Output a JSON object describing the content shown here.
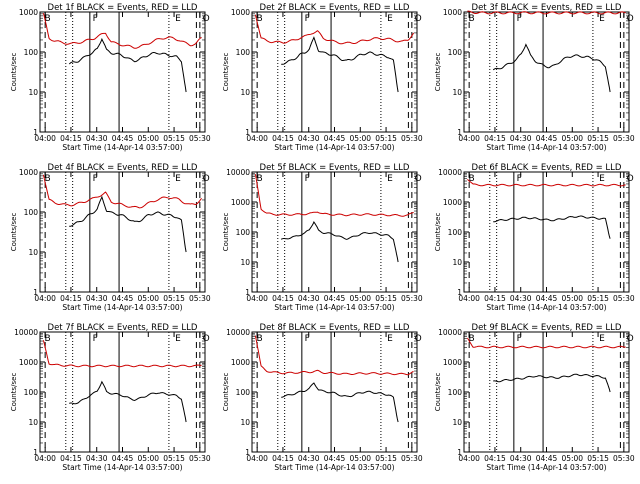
{
  "chart_data": [
    {
      "type": "line",
      "title": "Det 1f BLACK = Events, RED = LLD",
      "xlabel": "Start Time (14-Apr-14 03:57:00)",
      "ylabel": "Counts/sec",
      "ylim": [
        1,
        1000
      ],
      "y_scale": "log",
      "x_ticks": [
        "04:00",
        "04:15",
        "04:30",
        "04:45",
        "05:00",
        "05:15",
        "05:30"
      ],
      "y_ticks": [
        "1",
        "10",
        "100",
        "1000"
      ],
      "markers": [
        "B",
        "F",
        "E",
        "O"
      ],
      "series": [
        {
          "name": "Events",
          "color": "#000000",
          "start": "04:14",
          "end": "05:22",
          "values": [
            50,
            55,
            60,
            70,
            85,
            95,
            120,
            220,
            110,
            95,
            90,
            85,
            75,
            65,
            60,
            65,
            75,
            85,
            92,
            95,
            90,
            85,
            80,
            75,
            60,
            10
          ]
        },
        {
          "name": "LLD",
          "color": "#cc0000",
          "start": "03:59",
          "end": "05:31",
          "values": [
            900,
            220,
            190,
            175,
            165,
            160,
            170,
            180,
            200,
            220,
            260,
            300,
            180,
            160,
            150,
            140,
            130,
            135,
            150,
            175,
            200,
            220,
            230,
            220,
            200,
            170,
            150,
            160,
            230
          ]
        }
      ]
    },
    {
      "type": "line",
      "title": "Det 2f BLACK = Events, RED = LLD",
      "xlabel": "Start Time (14-Apr-14 03:57:00)",
      "ylabel": "Counts/sec",
      "ylim": [
        1,
        1000
      ],
      "y_scale": "log",
      "x_ticks": [
        "04:00",
        "04:15",
        "04:30",
        "04:45",
        "05:00",
        "05:15",
        "05:30"
      ],
      "y_ticks": [
        "1",
        "10",
        "100",
        "1000"
      ],
      "markers": [
        "B",
        "F",
        "E",
        "O"
      ],
      "series": [
        {
          "name": "Events",
          "color": "#000000",
          "start": "04:14",
          "end": "05:22",
          "values": [
            50,
            55,
            60,
            70,
            85,
            95,
            120,
            220,
            110,
            95,
            90,
            85,
            75,
            65,
            60,
            65,
            75,
            85,
            92,
            95,
            90,
            85,
            80,
            75,
            60,
            10
          ]
        },
        {
          "name": "LLD",
          "color": "#cc0000",
          "start": "03:59",
          "end": "05:31",
          "values": [
            900,
            220,
            190,
            180,
            175,
            175,
            185,
            200,
            230,
            250,
            300,
            330,
            220,
            200,
            180,
            170,
            165,
            170,
            175,
            190,
            205,
            215,
            220,
            215,
            205,
            190,
            180,
            200,
            300
          ]
        }
      ]
    },
    {
      "type": "line",
      "title": "Det 3f BLACK = Events, RED = LLD",
      "xlabel": "Start Time (14-Apr-14 03:57:00)",
      "ylabel": "Counts/sec",
      "ylim": [
        1,
        1000
      ],
      "y_scale": "log",
      "x_ticks": [
        "04:00",
        "04:15",
        "04:30",
        "04:45",
        "05:00",
        "05:15",
        "05:30"
      ],
      "y_ticks": [
        "1",
        "10",
        "100",
        "1000"
      ],
      "markers": [
        "B",
        "F",
        "E",
        "O"
      ],
      "series": [
        {
          "name": "Events",
          "color": "#000000",
          "start": "04:14",
          "end": "05:22",
          "values": [
            35,
            38,
            42,
            48,
            55,
            65,
            90,
            160,
            80,
            60,
            50,
            45,
            42,
            45,
            55,
            65,
            75,
            80,
            80,
            78,
            75,
            70,
            65,
            55,
            45,
            10
          ]
        },
        {
          "name": "LLD",
          "color": "#cc0000",
          "start": "03:59",
          "end": "05:31",
          "values": [
            1000,
            980,
            960,
            950,
            950,
            950,
            950,
            950,
            950,
            960,
            960,
            960,
            950,
            950,
            950,
            950,
            950,
            950,
            950,
            950,
            950,
            950,
            950,
            950,
            950,
            950,
            950,
            950,
            950
          ]
        }
      ]
    },
    {
      "type": "line",
      "title": "Det 4f BLACK = Events, RED = LLD",
      "xlabel": "Start Time (14-Apr-14 03:57:00)",
      "ylabel": "Counts/sec",
      "ylim": [
        1,
        1000
      ],
      "y_scale": "log",
      "x_ticks": [
        "04:00",
        "04:15",
        "04:30",
        "04:45",
        "05:00",
        "05:15",
        "05:30"
      ],
      "y_ticks": [
        "1",
        "10",
        "100",
        "1000"
      ],
      "markers": [
        "B",
        "F",
        "E",
        "O"
      ],
      "series": [
        {
          "name": "Events",
          "color": "#000000",
          "start": "04:14",
          "end": "05:22",
          "values": [
            45,
            50,
            55,
            65,
            80,
            95,
            120,
            230,
            110,
            95,
            90,
            85,
            75,
            65,
            55,
            60,
            70,
            85,
            92,
            95,
            90,
            85,
            80,
            75,
            60,
            10
          ]
        },
        {
          "name": "LLD",
          "color": "#cc0000",
          "start": "03:59",
          "end": "05:31",
          "values": [
            900,
            200,
            170,
            160,
            150,
            150,
            160,
            175,
            200,
            220,
            260,
            300,
            180,
            165,
            150,
            140,
            130,
            130,
            150,
            175,
            200,
            220,
            235,
            225,
            205,
            170,
            150,
            160,
            220
          ]
        }
      ]
    },
    {
      "type": "line",
      "title": "Det 5f BLACK = Events, RED = LLD",
      "xlabel": "Start Time (14-Apr-14 03:57:00)",
      "ylabel": "Counts/sec",
      "ylim": [
        1,
        10000
      ],
      "y_scale": "log",
      "x_ticks": [
        "04:00",
        "04:15",
        "04:30",
        "04:45",
        "05:00",
        "05:15",
        "05:30"
      ],
      "y_ticks": [
        "1",
        "10",
        "100",
        "1000",
        "10000"
      ],
      "markers": [
        "B",
        "F",
        "E",
        "O"
      ],
      "series": [
        {
          "name": "Events",
          "color": "#000000",
          "start": "04:14",
          "end": "05:22",
          "values": [
            55,
            60,
            65,
            70,
            80,
            90,
            120,
            220,
            110,
            95,
            90,
            85,
            75,
            65,
            60,
            65,
            75,
            85,
            92,
            95,
            90,
            85,
            80,
            75,
            60,
            10
          ]
        },
        {
          "name": "LLD",
          "color": "#cc0000",
          "start": "03:59",
          "end": "05:31",
          "values": [
            8000,
            600,
            420,
            390,
            380,
            380,
            380,
            385,
            390,
            400,
            420,
            480,
            400,
            390,
            380,
            375,
            370,
            375,
            380,
            385,
            385,
            380,
            375,
            370,
            365,
            360,
            355,
            360,
            450
          ]
        }
      ]
    },
    {
      "type": "line",
      "title": "Det 6f BLACK = Events, RED = LLD",
      "xlabel": "Start Time (14-Apr-14 03:57:00)",
      "ylabel": "Counts/sec",
      "ylim": [
        1,
        10000
      ],
      "y_scale": "log",
      "x_ticks": [
        "04:00",
        "04:15",
        "04:30",
        "04:45",
        "05:00",
        "05:15",
        "05:30"
      ],
      "y_ticks": [
        "1",
        "10",
        "100",
        "1000",
        "10000"
      ],
      "markers": [
        "B",
        "F",
        "E",
        "O"
      ],
      "series": [
        {
          "name": "Events",
          "color": "#000000",
          "start": "04:14",
          "end": "05:22",
          "values": [
            230,
            240,
            250,
            260,
            270,
            280,
            290,
            300,
            290,
            280,
            270,
            260,
            250,
            250,
            260,
            280,
            300,
            320,
            330,
            320,
            310,
            300,
            290,
            280,
            270,
            60
          ]
        },
        {
          "name": "LLD",
          "color": "#cc0000",
          "start": "03:59",
          "end": "05:31",
          "values": [
            6000,
            3800,
            3700,
            3650,
            3650,
            3650,
            3650,
            3650,
            3650,
            3650,
            3650,
            3650,
            3650,
            3650,
            3650,
            3650,
            3650,
            3650,
            3650,
            3650,
            3650,
            3650,
            3650,
            3650,
            3650,
            3650,
            3650,
            3650,
            3700
          ]
        }
      ]
    },
    {
      "type": "line",
      "title": "Det 7f BLACK = Events, RED = LLD",
      "xlabel": "Start Time (14-Apr-14 03:57:00)",
      "ylabel": "Counts/sec",
      "ylim": [
        1,
        10000
      ],
      "y_scale": "log",
      "x_ticks": [
        "04:00",
        "04:15",
        "04:30",
        "04:45",
        "05:00",
        "05:15",
        "05:30"
      ],
      "y_ticks": [
        "1",
        "10",
        "100",
        "1000",
        "10000"
      ],
      "markers": [
        "B",
        "F",
        "E",
        "O"
      ],
      "series": [
        {
          "name": "Events",
          "color": "#000000",
          "start": "04:14",
          "end": "05:22",
          "values": [
            40,
            42,
            45,
            55,
            70,
            85,
            110,
            220,
            100,
            90,
            85,
            80,
            70,
            60,
            55,
            60,
            70,
            80,
            90,
            95,
            90,
            85,
            80,
            75,
            60,
            10
          ]
        },
        {
          "name": "LLD",
          "color": "#cc0000",
          "start": "03:59",
          "end": "05:31",
          "values": [
            5000,
            900,
            800,
            780,
            760,
            750,
            740,
            740,
            740,
            740,
            740,
            740,
            740,
            740,
            740,
            740,
            740,
            740,
            740,
            740,
            740,
            740,
            740,
            740,
            740,
            740,
            740,
            740,
            780
          ]
        }
      ]
    },
    {
      "type": "line",
      "title": "Det 8f BLACK = Events, RED = LLD",
      "xlabel": "Start Time (14-Apr-14 03:57:00)",
      "ylabel": "Counts/sec",
      "ylim": [
        1,
        10000
      ],
      "y_scale": "log",
      "x_ticks": [
        "04:00",
        "04:15",
        "04:30",
        "04:45",
        "05:00",
        "05:15",
        "05:30"
      ],
      "y_ticks": [
        "1",
        "10",
        "100",
        "1000",
        "10000"
      ],
      "markers": [
        "B",
        "F",
        "E",
        "O"
      ],
      "series": [
        {
          "name": "Events",
          "color": "#000000",
          "start": "04:14",
          "end": "05:22",
          "values": [
            70,
            75,
            80,
            90,
            100,
            110,
            130,
            200,
            120,
            105,
            100,
            95,
            85,
            75,
            70,
            75,
            85,
            95,
            100,
            100,
            95,
            90,
            85,
            80,
            65,
            10
          ]
        },
        {
          "name": "LLD",
          "color": "#cc0000",
          "start": "03:59",
          "end": "05:31",
          "values": [
            8000,
            700,
            500,
            460,
            440,
            430,
            430,
            440,
            450,
            460,
            470,
            500,
            440,
            430,
            420,
            410,
            400,
            405,
            410,
            415,
            420,
            420,
            415,
            410,
            405,
            400,
            395,
            400,
            480
          ]
        }
      ]
    },
    {
      "type": "line",
      "title": "Det 9f BLACK = Events, RED = LLD",
      "xlabel": "Start Time (14-Apr-14 03:57:00)",
      "ylabel": "Counts/sec",
      "ylim": [
        1,
        10000
      ],
      "y_scale": "log",
      "x_ticks": [
        "04:00",
        "04:15",
        "04:30",
        "04:45",
        "05:00",
        "05:15",
        "05:30"
      ],
      "y_ticks": [
        "1",
        "10",
        "100",
        "1000",
        "10000"
      ],
      "markers": [
        "B",
        "F",
        "E",
        "O"
      ],
      "series": [
        {
          "name": "Events",
          "color": "#000000",
          "start": "04:14",
          "end": "05:22",
          "values": [
            220,
            230,
            240,
            250,
            260,
            270,
            280,
            300,
            320,
            340,
            330,
            320,
            310,
            300,
            300,
            320,
            340,
            360,
            380,
            370,
            360,
            350,
            340,
            320,
            300,
            100
          ]
        },
        {
          "name": "LLD",
          "color": "#cc0000",
          "start": "03:59",
          "end": "05:31",
          "values": [
            6000,
            3300,
            3200,
            3150,
            3150,
            3150,
            3150,
            3150,
            3150,
            3150,
            3150,
            3150,
            3150,
            3150,
            3150,
            3150,
            3150,
            3150,
            3150,
            3150,
            3150,
            3150,
            3150,
            3150,
            3150,
            3150,
            3150,
            3150,
            3200
          ]
        }
      ]
    }
  ]
}
